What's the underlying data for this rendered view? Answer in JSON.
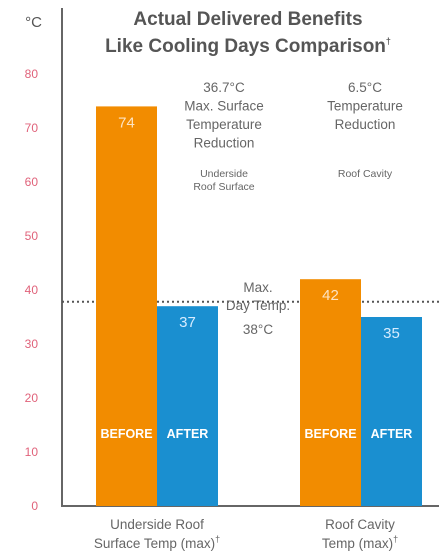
{
  "chart_data": {
    "type": "bar",
    "title_line1": "Actual Delivered Benefits",
    "title_line2": "Like Cooling Days Comparison",
    "title_mark": "†",
    "y_unit": "°C",
    "ylim": [
      0,
      85
    ],
    "y_ticks": [
      0,
      10,
      20,
      30,
      40,
      50,
      60,
      70,
      80
    ],
    "colors": {
      "before": "#f28c00",
      "after": "#1a8fd0",
      "tick": "#e0627a",
      "axis": "#666666",
      "refline": "#555555"
    },
    "categories": [
      {
        "label_line1": "Underside Roof",
        "label_line2": "Surface Temp (max)",
        "mark": "†"
      },
      {
        "label_line1": "Roof Cavity",
        "label_line2": "Temp (max)",
        "mark": "†"
      }
    ],
    "series": [
      {
        "name": "BEFORE",
        "values": [
          74,
          42
        ]
      },
      {
        "name": "AFTER",
        "values": [
          37,
          35
        ]
      }
    ],
    "value_labels": [
      "74",
      "37",
      "42",
      "35"
    ],
    "annotations": [
      {
        "lines": [
          "36.7°C",
          "Max. Surface",
          "Temperature",
          "Reduction"
        ],
        "sub": [
          "Underside",
          "Roof Surface"
        ]
      },
      {
        "lines": [
          "6.5°C",
          "Temperature",
          "Reduction"
        ],
        "sub": [
          "Roof Cavity"
        ]
      }
    ],
    "reference_line": {
      "value": 38,
      "lines": [
        "Max.",
        "Day Temp.",
        "38°C"
      ]
    }
  }
}
